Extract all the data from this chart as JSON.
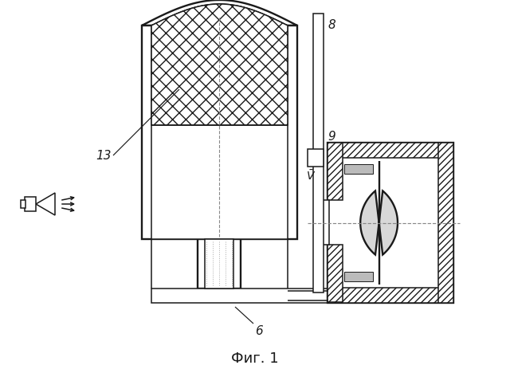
{
  "title": "Фиг. 1",
  "title_fontsize": 13,
  "lc": "#1a1a1a",
  "bg": "#ffffff",
  "lw": 1.1,
  "lw2": 1.7,
  "lw3": 0.8
}
